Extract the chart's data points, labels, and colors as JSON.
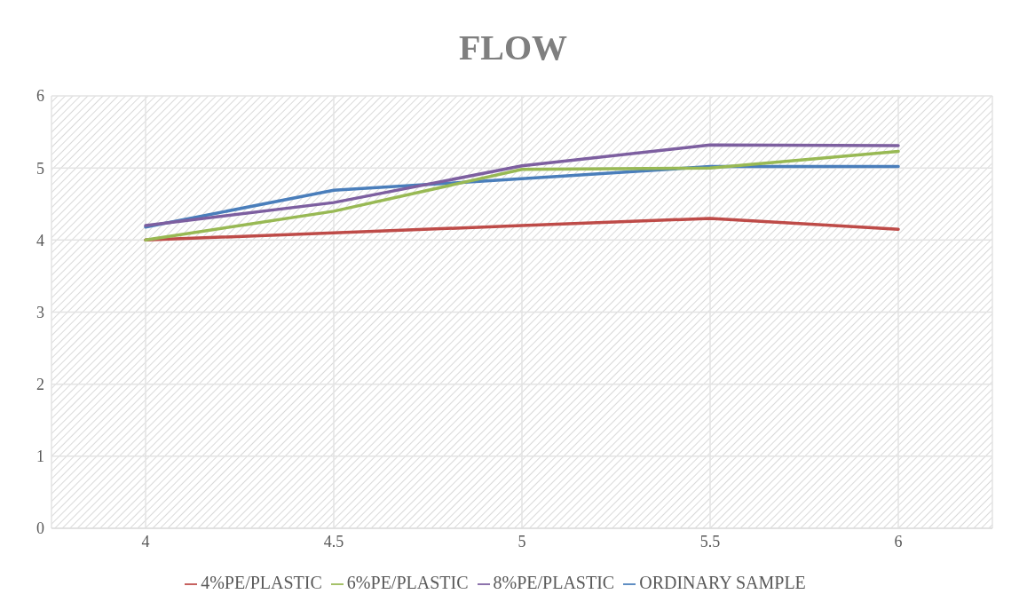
{
  "chart_data": {
    "type": "line",
    "title": "FLOW",
    "categories": [
      "4",
      "4.5",
      "5",
      "5.5",
      "6"
    ],
    "series": [
      {
        "name": "ORDINARY SAMPLE",
        "color": "#4a7ebb",
        "values": [
          4.18,
          4.69,
          4.85,
          5.02,
          5.02
        ]
      },
      {
        "name": "4%PE/PLASTIC",
        "color": "#be4b48",
        "values": [
          4.0,
          4.1,
          4.2,
          4.3,
          4.15
        ]
      },
      {
        "name": "6%PE/PLASTIC",
        "color": "#98b954",
        "values": [
          4.0,
          4.4,
          4.98,
          5.0,
          5.23
        ]
      },
      {
        "name": "8%PE/PLASTIC",
        "color": "#7d5fa0",
        "values": [
          4.2,
          4.52,
          5.03,
          5.32,
          5.31
        ]
      }
    ],
    "ylim": [
      0,
      6
    ],
    "yticks": [
      0,
      1,
      2,
      3,
      4,
      5,
      6
    ],
    "grid": true,
    "legend": "bottom",
    "marker": "none",
    "line_style": "solid"
  }
}
